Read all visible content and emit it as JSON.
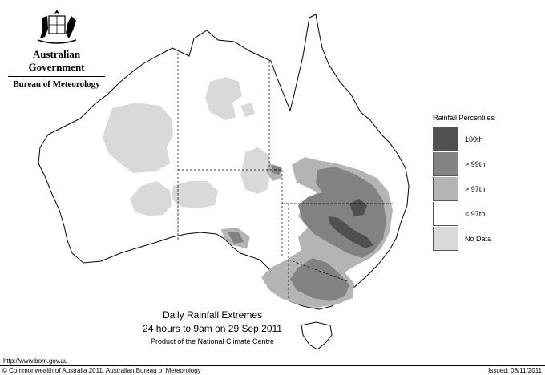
{
  "header": {
    "government": "Australian Government",
    "bureau": "Bureau of Meteorology"
  },
  "map": {
    "crest": "coat-of-arms",
    "region": "Australia",
    "fill_colors": {
      "p100": "#505050",
      "p99": "#828282",
      "p97": "#b4b4b4",
      "below97": "#ffffff",
      "nodata": "#d9d9d9"
    }
  },
  "legend": {
    "title": "Rainfall Percentiles",
    "items": [
      {
        "label": "100th",
        "color": "#505050"
      },
      {
        "label": "> 99th",
        "color": "#828282"
      },
      {
        "label": "> 97th",
        "color": "#b4b4b4"
      },
      {
        "label": "< 97th",
        "color": "#ffffff"
      },
      {
        "label": "No Data",
        "color": "#d9d9d9"
      }
    ]
  },
  "titles": {
    "line1": "Daily Rainfall Extremes",
    "line2": "24 hours to 9am on 29 Sep 2011",
    "line3": "Product of the National Climate Centre"
  },
  "footer": {
    "url": "http://www.bom.gov.au",
    "copyright": "© Commonwealth of Australia 2011, Australian Bureau of Meteorology",
    "issued": "Issued: 08/11/2011"
  }
}
